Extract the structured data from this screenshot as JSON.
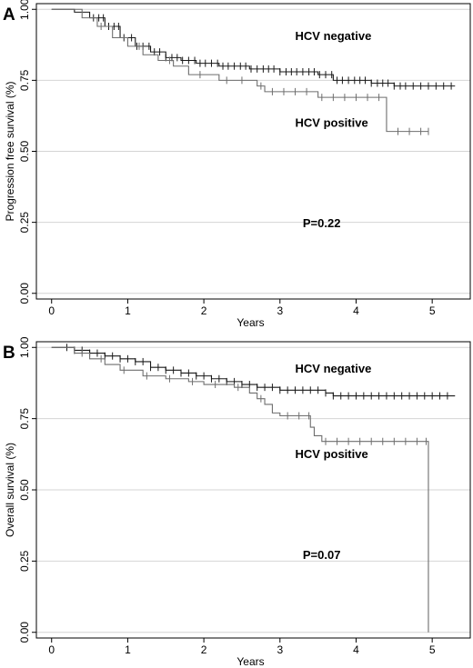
{
  "chart_data": [
    {
      "type": "line",
      "panel_label": "A",
      "xlabel": "Years",
      "ylabel": "Progression free survival (%)",
      "xlim": [
        -0.2,
        5.5
      ],
      "ylim": [
        -0.02,
        1.02
      ],
      "xticks": [
        "0",
        "1",
        "2",
        "3",
        "4",
        "5"
      ],
      "yticks": [
        "0.00",
        "0.25",
        "0.50",
        "0.75",
        "1.00"
      ],
      "grid": "horizontal",
      "annotations": [
        {
          "text": "HCV negative",
          "x": 3.2,
          "y": 0.905
        },
        {
          "text": "HCV positive",
          "x": 3.2,
          "y": 0.6
        },
        {
          "text": "P=0.22",
          "x": 3.3,
          "y": 0.245
        }
      ],
      "series": [
        {
          "name": "HCV negative",
          "color": "#1a1a1a",
          "steps": [
            [
              0,
              1.0
            ],
            [
              0.3,
              0.99
            ],
            [
              0.5,
              0.97
            ],
            [
              0.7,
              0.94
            ],
            [
              0.9,
              0.9
            ],
            [
              1.1,
              0.87
            ],
            [
              1.3,
              0.85
            ],
            [
              1.5,
              0.83
            ],
            [
              1.7,
              0.82
            ],
            [
              1.9,
              0.81
            ],
            [
              2.2,
              0.8
            ],
            [
              2.6,
              0.79
            ],
            [
              3.0,
              0.78
            ],
            [
              3.5,
              0.77
            ],
            [
              3.7,
              0.75
            ],
            [
              4.2,
              0.74
            ],
            [
              4.5,
              0.73
            ],
            [
              5.3,
              0.73
            ]
          ],
          "censored": [
            0.55,
            0.62,
            0.68,
            0.75,
            0.82,
            0.88,
            0.95,
            1.05,
            1.12,
            1.2,
            1.28,
            1.35,
            1.42,
            1.5,
            1.58,
            1.65,
            1.72,
            1.8,
            1.88,
            1.95,
            2.02,
            2.1,
            2.18,
            2.25,
            2.32,
            2.4,
            2.48,
            2.55,
            2.62,
            2.7,
            2.78,
            2.85,
            2.92,
            3.0,
            3.08,
            3.15,
            3.22,
            3.3,
            3.38,
            3.45,
            3.52,
            3.6,
            3.68,
            3.75,
            3.82,
            3.9,
            3.98,
            4.05,
            4.12,
            4.2,
            4.28,
            4.35,
            4.42,
            4.5,
            4.58,
            4.65,
            4.75,
            4.85,
            4.95,
            5.05,
            5.15,
            5.25
          ]
        },
        {
          "name": "HCV positive",
          "color": "#6e6e6e",
          "steps": [
            [
              0,
              1.0
            ],
            [
              0.4,
              0.97
            ],
            [
              0.6,
              0.94
            ],
            [
              0.8,
              0.9
            ],
            [
              1.0,
              0.87
            ],
            [
              1.2,
              0.84
            ],
            [
              1.4,
              0.82
            ],
            [
              1.6,
              0.8
            ],
            [
              1.8,
              0.77
            ],
            [
              2.2,
              0.75
            ],
            [
              2.7,
              0.73
            ],
            [
              2.8,
              0.71
            ],
            [
              3.0,
              0.71
            ],
            [
              3.5,
              0.69
            ],
            [
              3.8,
              0.69
            ],
            [
              4.38,
              0.69
            ],
            [
              4.4,
              0.57
            ],
            [
              4.95,
              0.57
            ]
          ],
          "censored": [
            0.65,
            1.15,
            1.55,
            1.95,
            2.3,
            2.5,
            2.75,
            2.9,
            3.05,
            3.2,
            3.35,
            3.55,
            3.7,
            3.85,
            4.0,
            4.15,
            4.3,
            4.55,
            4.7,
            4.85,
            4.95
          ]
        }
      ]
    },
    {
      "type": "line",
      "panel_label": "B",
      "xlabel": "Years",
      "ylabel": "Overall survival (%)",
      "xlim": [
        -0.2,
        5.5
      ],
      "ylim": [
        -0.02,
        1.02
      ],
      "xticks": [
        "0",
        "1",
        "2",
        "3",
        "4",
        "5"
      ],
      "yticks": [
        "0.00",
        "0.25",
        "0.50",
        "0.75",
        "1.00"
      ],
      "grid": "horizontal",
      "annotations": [
        {
          "text": "HCV negative",
          "x": 3.2,
          "y": 0.925
        },
        {
          "text": "HCV positive",
          "x": 3.2,
          "y": 0.625
        },
        {
          "text": "P=0.07",
          "x": 3.3,
          "y": 0.27
        }
      ],
      "series": [
        {
          "name": "HCV negative",
          "color": "#1a1a1a",
          "steps": [
            [
              0,
              1.0
            ],
            [
              0.3,
              0.99
            ],
            [
              0.5,
              0.98
            ],
            [
              0.7,
              0.97
            ],
            [
              0.9,
              0.96
            ],
            [
              1.1,
              0.95
            ],
            [
              1.3,
              0.93
            ],
            [
              1.5,
              0.92
            ],
            [
              1.7,
              0.91
            ],
            [
              1.9,
              0.9
            ],
            [
              2.1,
              0.89
            ],
            [
              2.3,
              0.88
            ],
            [
              2.5,
              0.87
            ],
            [
              2.7,
              0.86
            ],
            [
              3.0,
              0.85
            ],
            [
              3.6,
              0.84
            ],
            [
              3.7,
              0.83
            ],
            [
              5.3,
              0.83
            ]
          ],
          "censored": [
            0.2,
            0.3,
            0.4,
            0.5,
            0.6,
            0.7,
            0.8,
            0.9,
            1.0,
            1.1,
            1.2,
            1.3,
            1.4,
            1.5,
            1.6,
            1.7,
            1.8,
            1.9,
            2.0,
            2.1,
            2.2,
            2.3,
            2.4,
            2.5,
            2.6,
            2.7,
            2.8,
            2.9,
            3.0,
            3.1,
            3.2,
            3.3,
            3.4,
            3.5,
            3.6,
            3.7,
            3.8,
            3.9,
            4.0,
            4.1,
            4.2,
            4.3,
            4.4,
            4.5,
            4.6,
            4.7,
            4.8,
            4.9,
            5.0,
            5.1,
            5.2
          ]
        },
        {
          "name": "HCV positive",
          "color": "#6e6e6e",
          "steps": [
            [
              0,
              1.0
            ],
            [
              0.3,
              0.98
            ],
            [
              0.5,
              0.96
            ],
            [
              0.7,
              0.94
            ],
            [
              0.9,
              0.92
            ],
            [
              1.2,
              0.9
            ],
            [
              1.5,
              0.89
            ],
            [
              1.8,
              0.88
            ],
            [
              2.0,
              0.87
            ],
            [
              2.4,
              0.86
            ],
            [
              2.6,
              0.84
            ],
            [
              2.7,
              0.82
            ],
            [
              2.8,
              0.8
            ],
            [
              2.9,
              0.77
            ],
            [
              3.0,
              0.76
            ],
            [
              3.4,
              0.72
            ],
            [
              3.45,
              0.69
            ],
            [
              3.55,
              0.67
            ],
            [
              4.95,
              0.67
            ],
            [
              4.95,
              0.0
            ]
          ],
          "censored": [
            0.4,
            0.65,
            0.95,
            1.25,
            1.55,
            1.85,
            2.15,
            2.45,
            2.75,
            3.1,
            3.25,
            3.38,
            3.6,
            3.75,
            3.9,
            4.05,
            4.2,
            4.35,
            4.5,
            4.65,
            4.8,
            4.92
          ]
        }
      ]
    }
  ]
}
